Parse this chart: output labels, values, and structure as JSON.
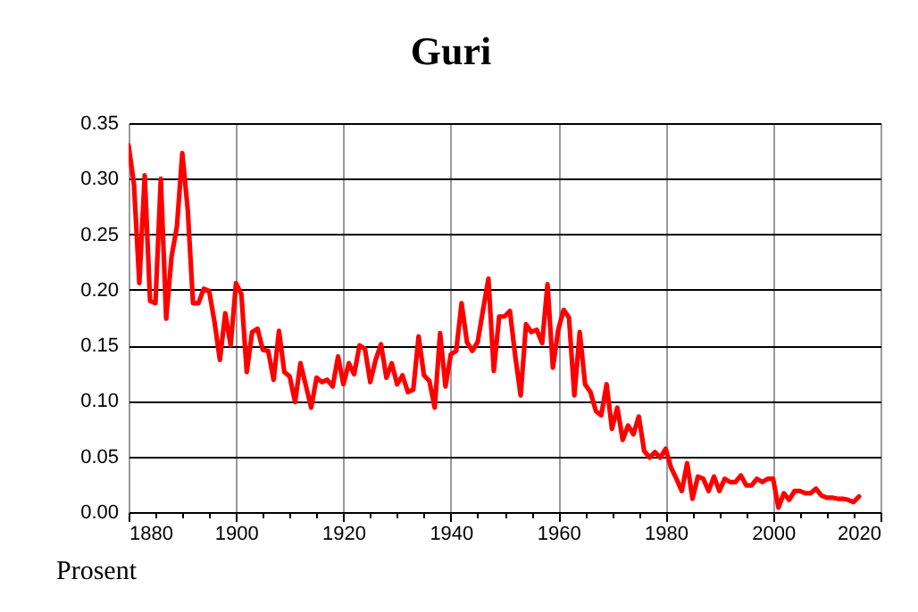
{
  "chart_data": {
    "type": "line",
    "title": "Guri",
    "ylabel": "Prosent",
    "x": [
      1880,
      1881,
      1882,
      1883,
      1884,
      1885,
      1886,
      1887,
      1888,
      1889,
      1890,
      1891,
      1892,
      1893,
      1894,
      1895,
      1896,
      1897,
      1898,
      1899,
      1900,
      1901,
      1902,
      1903,
      1904,
      1905,
      1906,
      1907,
      1908,
      1909,
      1910,
      1911,
      1912,
      1913,
      1914,
      1915,
      1916,
      1917,
      1918,
      1919,
      1920,
      1921,
      1922,
      1923,
      1924,
      1925,
      1926,
      1927,
      1928,
      1929,
      1930,
      1931,
      1932,
      1933,
      1934,
      1935,
      1936,
      1937,
      1938,
      1939,
      1940,
      1941,
      1942,
      1943,
      1944,
      1945,
      1946,
      1947,
      1948,
      1949,
      1950,
      1951,
      1952,
      1953,
      1954,
      1955,
      1956,
      1957,
      1958,
      1959,
      1960,
      1961,
      1962,
      1963,
      1964,
      1965,
      1966,
      1967,
      1968,
      1969,
      1970,
      1971,
      1972,
      1973,
      1974,
      1975,
      1976,
      1977,
      1978,
      1979,
      1980,
      1981,
      1982,
      1983,
      1984,
      1985,
      1986,
      1987,
      1988,
      1989,
      1990,
      1991,
      1992,
      1993,
      1994,
      1995,
      1996,
      1997,
      1998,
      1999,
      2000,
      2001,
      2002,
      2003,
      2004,
      2005,
      2006,
      2007,
      2008,
      2009,
      2010,
      2011,
      2012,
      2013,
      2014,
      2015,
      2016
    ],
    "series": [
      {
        "color": "#ff0000",
        "values": [
          0.33,
          0.295,
          0.206,
          0.303,
          0.19,
          0.188,
          0.3,
          0.174,
          0.23,
          0.257,
          0.323,
          0.273,
          0.188,
          0.188,
          0.201,
          0.199,
          0.171,
          0.137,
          0.179,
          0.15,
          0.206,
          0.196,
          0.126,
          0.162,
          0.165,
          0.146,
          0.145,
          0.119,
          0.163,
          0.126,
          0.122,
          0.099,
          0.134,
          0.114,
          0.094,
          0.121,
          0.117,
          0.119,
          0.113,
          0.14,
          0.115,
          0.134,
          0.124,
          0.15,
          0.147,
          0.117,
          0.137,
          0.151,
          0.121,
          0.134,
          0.115,
          0.123,
          0.108,
          0.11,
          0.158,
          0.123,
          0.118,
          0.094,
          0.161,
          0.113,
          0.142,
          0.145,
          0.188,
          0.153,
          0.145,
          0.153,
          0.182,
          0.21,
          0.127,
          0.176,
          0.176,
          0.181,
          0.14,
          0.105,
          0.169,
          0.162,
          0.164,
          0.152,
          0.205,
          0.13,
          0.164,
          0.182,
          0.175,
          0.105,
          0.162,
          0.115,
          0.108,
          0.091,
          0.087,
          0.115,
          0.075,
          0.094,
          0.065,
          0.078,
          0.07,
          0.086,
          0.055,
          0.049,
          0.054,
          0.049,
          0.057,
          0.04,
          0.03,
          0.019,
          0.044,
          0.012,
          0.032,
          0.03,
          0.019,
          0.032,
          0.019,
          0.03,
          0.027,
          0.027,
          0.033,
          0.024,
          0.024,
          0.03,
          0.027,
          0.03,
          0.03,
          0.004,
          0.017,
          0.011,
          0.019,
          0.019,
          0.017,
          0.017,
          0.021,
          0.015,
          0.013,
          0.013,
          0.012,
          0.012,
          0.011,
          0.009,
          0.014
        ]
      }
    ],
    "xlim": [
      1880,
      2020
    ],
    "xticks": [
      1880,
      {
        "value": 1885,
        "label": null
      },
      {
        "value": 1890,
        "label": null
      },
      {
        "value": 1895,
        "label": null
      },
      1900,
      {
        "value": 1905,
        "label": null
      },
      {
        "value": 1910,
        "label": null
      },
      {
        "value": 1915,
        "label": null
      },
      1920,
      {
        "value": 1925,
        "label": null
      },
      {
        "value": 1930,
        "label": null
      },
      {
        "value": 1935,
        "label": null
      },
      1940,
      {
        "value": 1945,
        "label": null
      },
      {
        "value": 1950,
        "label": null
      },
      {
        "value": 1955,
        "label": null
      },
      1960,
      {
        "value": 1965,
        "label": null
      },
      {
        "value": 1970,
        "label": null
      },
      {
        "value": 1975,
        "label": null
      },
      1980,
      {
        "value": 1985,
        "label": null
      },
      {
        "value": 1990,
        "label": null
      },
      {
        "value": 1995,
        "label": null
      },
      2000,
      {
        "value": 2005,
        "label": null
      },
      {
        "value": 2010,
        "label": null
      },
      {
        "value": 2015,
        "label": null
      },
      2020
    ],
    "ylim": [
      0,
      0.35
    ],
    "yticks": [
      {
        "value": 0,
        "label": "0.00"
      },
      {
        "value": 0.05,
        "label": "0.05"
      },
      {
        "value": 0.1,
        "label": "0.10"
      },
      {
        "value": 0.15,
        "label": "0.15"
      },
      {
        "value": 0.2,
        "label": "0.20"
      },
      {
        "value": 0.25,
        "label": "0.25"
      },
      {
        "value": 0.3,
        "label": "0.30"
      },
      {
        "value": 0.35,
        "label": "0.35"
      }
    ],
    "grid": true,
    "legend": false,
    "marker": "none",
    "line_style": "solid"
  }
}
